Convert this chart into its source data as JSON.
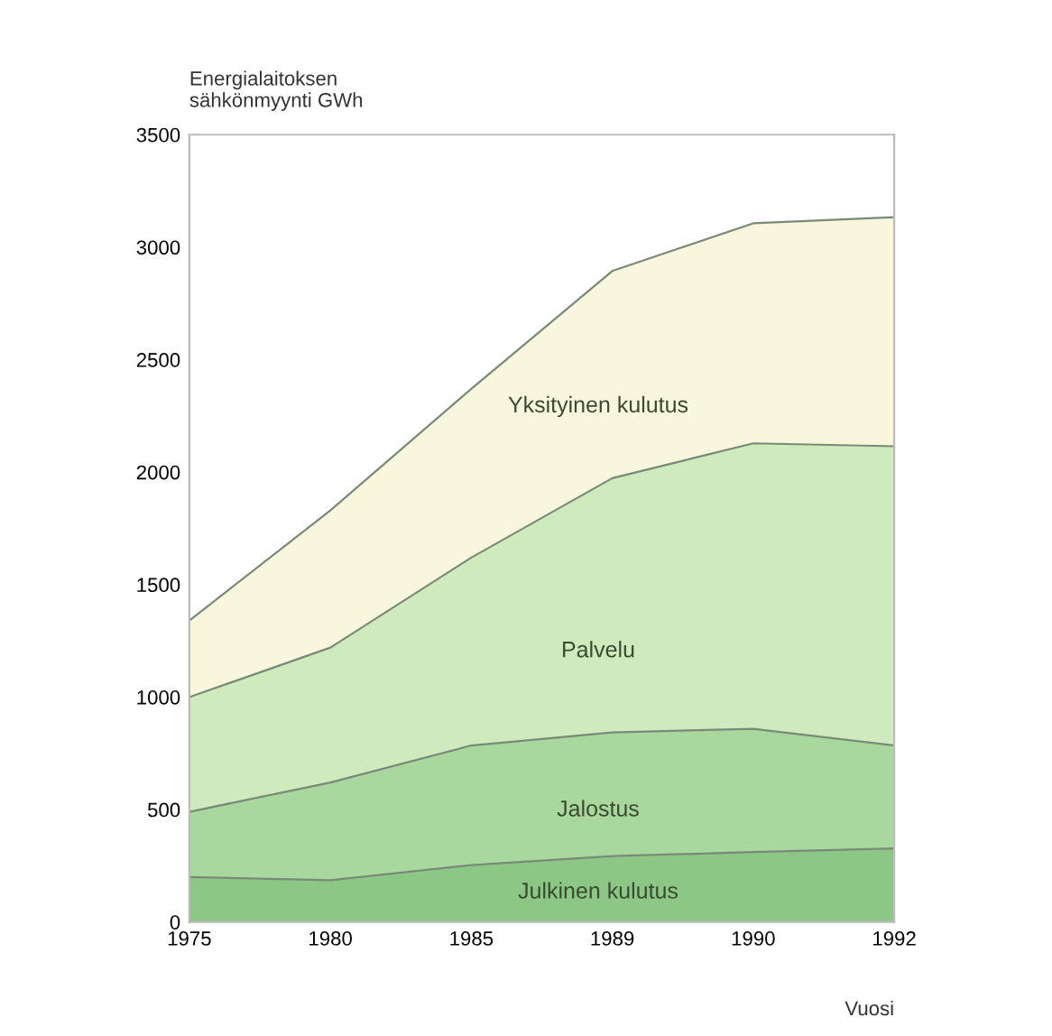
{
  "chart_data": {
    "type": "area",
    "stacked": true,
    "ylabel": "Energialaitoksen\nsähkönmyynti GWh",
    "xlabel": "Vuosi",
    "categories": [
      "1975",
      "1980",
      "1985",
      "1989",
      "1990",
      "1992"
    ],
    "ylim": [
      0,
      3500
    ],
    "yticks": [
      0,
      500,
      1000,
      1500,
      2000,
      2500,
      3000,
      3500
    ],
    "grid": false,
    "legend": false,
    "series": [
      {
        "name": "Julkinen kulutus",
        "color": "#8cc785",
        "values": [
          200,
          186,
          253,
          293,
          311,
          327
        ]
      },
      {
        "name": "Jalostus",
        "color": "#a9d89f",
        "values": [
          290,
          434,
          532,
          550,
          548,
          458
        ]
      },
      {
        "name": "Palvelu",
        "color": "#cfeabd",
        "values": [
          510,
          600,
          835,
          1130,
          1269,
          1330
        ]
      },
      {
        "name": "Yksityinen kulutus",
        "color": "#f8f7de",
        "values": [
          340,
          610,
          750,
          921,
          978,
          1018
        ]
      }
    ]
  }
}
